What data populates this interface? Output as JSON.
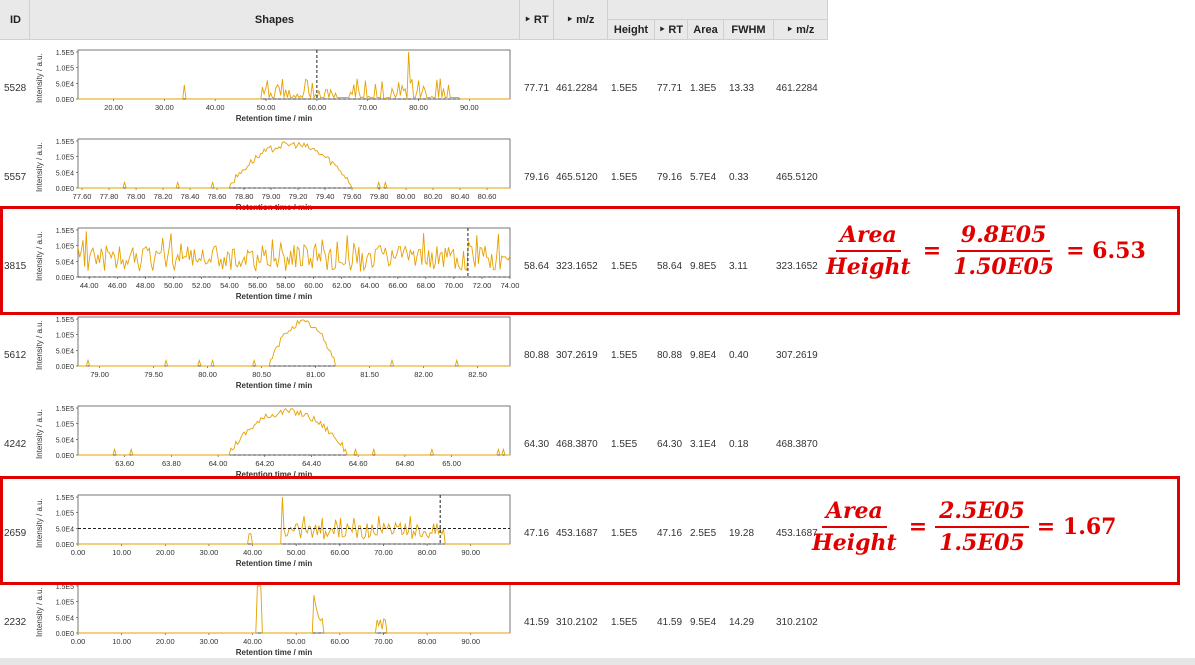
{
  "header": {
    "id": "ID",
    "shapes": "Shapes",
    "rt": "‣ RT",
    "mz": "‣ m/z",
    "sub_height": "Height",
    "sub_rt": "‣ RT",
    "sub_area": "Area",
    "sub_fwhm": "FWHM",
    "sub_mz": "‣ m/z"
  },
  "chart_axis": {
    "xlabel": "Retention time / min",
    "ylabel": "Intensity / a.u.",
    "yticks": [
      "1.5E5",
      "1.0E5",
      "5.0E4",
      "0.0E0"
    ]
  },
  "rows": [
    {
      "id": "5528",
      "rt": "77.71",
      "mz": "461.2284",
      "height": "1.5E5",
      "rt2": "77.71",
      "area": "1.3E5",
      "fwhm": "13.33",
      "mz2": "461.2284",
      "chart_data": {
        "type": "line",
        "xlim": [
          13,
          98
        ],
        "xticks": [
          "20.00",
          "30.00",
          "40.00",
          "50.00",
          "60.00",
          "70.00",
          "80.00",
          "90.00"
        ],
        "xtickvals": [
          20,
          30,
          40,
          50,
          60,
          70,
          80,
          90
        ],
        "vline": 60,
        "pattern": "spiky",
        "start": 49,
        "end": 88,
        "peak": 78
      }
    },
    {
      "id": "5557",
      "rt": "79.16",
      "mz": "465.5120",
      "height": "1.5E5",
      "rt2": "79.16",
      "area": "5.7E4",
      "fwhm": "0.33",
      "mz2": "465.5120",
      "chart_data": {
        "type": "line",
        "xlim": [
          77.57,
          80.77
        ],
        "xticks": [
          "77.60",
          "77.80",
          "78.00",
          "78.20",
          "78.40",
          "78.60",
          "78.80",
          "79.00",
          "79.20",
          "79.40",
          "79.60",
          "79.80",
          "80.00",
          "80.20",
          "80.40",
          "80.60"
        ],
        "xtickvals": [
          77.6,
          77.8,
          78.0,
          78.2,
          78.4,
          78.6,
          78.8,
          79.0,
          79.2,
          79.4,
          79.6,
          79.8,
          80.0,
          80.2,
          80.4,
          80.6
        ],
        "pattern": "peak",
        "start": 78.8,
        "end": 79.7,
        "peak": 79.15
      }
    },
    {
      "id": "3815",
      "rt": "58.64",
      "mz": "323.1652",
      "height": "1.5E5",
      "rt2": "58.64",
      "area": "9.8E5",
      "fwhm": "3.11",
      "mz2": "323.1652",
      "chart_data": {
        "type": "line",
        "xlim": [
          43.2,
          74.0
        ],
        "xticks": [
          "44.00",
          "46.00",
          "48.00",
          "50.00",
          "52.00",
          "54.00",
          "56.00",
          "58.00",
          "60.00",
          "62.00",
          "64.00",
          "66.00",
          "68.00",
          "70.00",
          "72.00",
          "74.00"
        ],
        "xtickvals": [
          44,
          46,
          48,
          50,
          52,
          54,
          56,
          58,
          60,
          62,
          64,
          66,
          68,
          70,
          72,
          74
        ],
        "vline": 71,
        "pattern": "dense",
        "start": 43.2,
        "end": 74.0,
        "peak": 58.5
      }
    },
    {
      "id": "5612",
      "rt": "80.88",
      "mz": "307.2619",
      "height": "1.5E5",
      "rt2": "80.88",
      "area": "9.8E4",
      "fwhm": "0.40",
      "mz2": "307.2619",
      "chart_data": {
        "type": "line",
        "xlim": [
          78.8,
          82.8
        ],
        "xticks": [
          "79.00",
          "79.50",
          "80.00",
          "80.50",
          "81.00",
          "81.50",
          "82.00",
          "82.50"
        ],
        "xtickvals": [
          79.0,
          79.5,
          80.0,
          80.5,
          81.0,
          81.5,
          82.0,
          82.5
        ],
        "pattern": "peak",
        "start": 80.5,
        "end": 81.1,
        "peak": 80.88
      }
    },
    {
      "id": "4242",
      "rt": "64.30",
      "mz": "468.3870",
      "height": "1.5E5",
      "rt2": "64.30",
      "area": "3.1E4",
      "fwhm": "0.18",
      "mz2": "468.3870",
      "chart_data": {
        "type": "line",
        "xlim": [
          63.4,
          65.25
        ],
        "xticks": [
          "63.60",
          "63.80",
          "64.00",
          "64.20",
          "64.40",
          "64.60",
          "64.80",
          "65.00"
        ],
        "xtickvals": [
          63.6,
          63.8,
          64.0,
          64.2,
          64.4,
          64.6,
          64.8,
          65.0
        ],
        "pattern": "peak",
        "start": 64.05,
        "end": 64.55,
        "peak": 64.3
      }
    },
    {
      "id": "2659",
      "rt": "47.16",
      "mz": "453.1687",
      "height": "1.5E5",
      "rt2": "47.16",
      "area": "2.5E5",
      "fwhm": "19.28",
      "mz2": "453.1687",
      "chart_data": {
        "type": "line",
        "xlim": [
          0,
          99
        ],
        "xticks": [
          "0.00",
          "10.00",
          "20.00",
          "30.00",
          "40.00",
          "50.00",
          "60.00",
          "70.00",
          "80.00",
          "90.00"
        ],
        "xtickvals": [
          0,
          10,
          20,
          30,
          40,
          50,
          60,
          70,
          80,
          90
        ],
        "vline": 83,
        "hline": 0.33,
        "pattern": "plateau",
        "start": 47,
        "end": 84,
        "peak": 47.16
      }
    },
    {
      "id": "2232",
      "rt": "41.59",
      "mz": "310.2102",
      "height": "1.5E5",
      "rt2": "41.59",
      "area": "9.5E4",
      "fwhm": "14.29",
      "mz2": "310.2102",
      "chart_data": {
        "type": "line",
        "xlim": [
          0,
          99
        ],
        "xticks": [
          "0.00",
          "10.00",
          "20.00",
          "30.00",
          "40.00",
          "50.00",
          "60.00",
          "70.00",
          "80.00",
          "90.00"
        ],
        "xtickvals": [
          0,
          10,
          20,
          30,
          40,
          50,
          60,
          70,
          80,
          90
        ],
        "pattern": "clusters",
        "start": 0,
        "end": 99,
        "peak": 41.59
      }
    }
  ],
  "annotations": [
    {
      "num": "Area",
      "den": "Height",
      "num2": "9.8E05",
      "den2": "1.50E05",
      "eq": "=",
      "result": "= 6.53"
    },
    {
      "num": "Area",
      "den": "Height",
      "num2": "2.5E05",
      "den2": "1.5E05",
      "eq": "=",
      "result": "= 1.67"
    }
  ],
  "colors": {
    "trace": "#e6a100",
    "highlight": "#e00000",
    "header_bg": "#e9e9e9"
  }
}
